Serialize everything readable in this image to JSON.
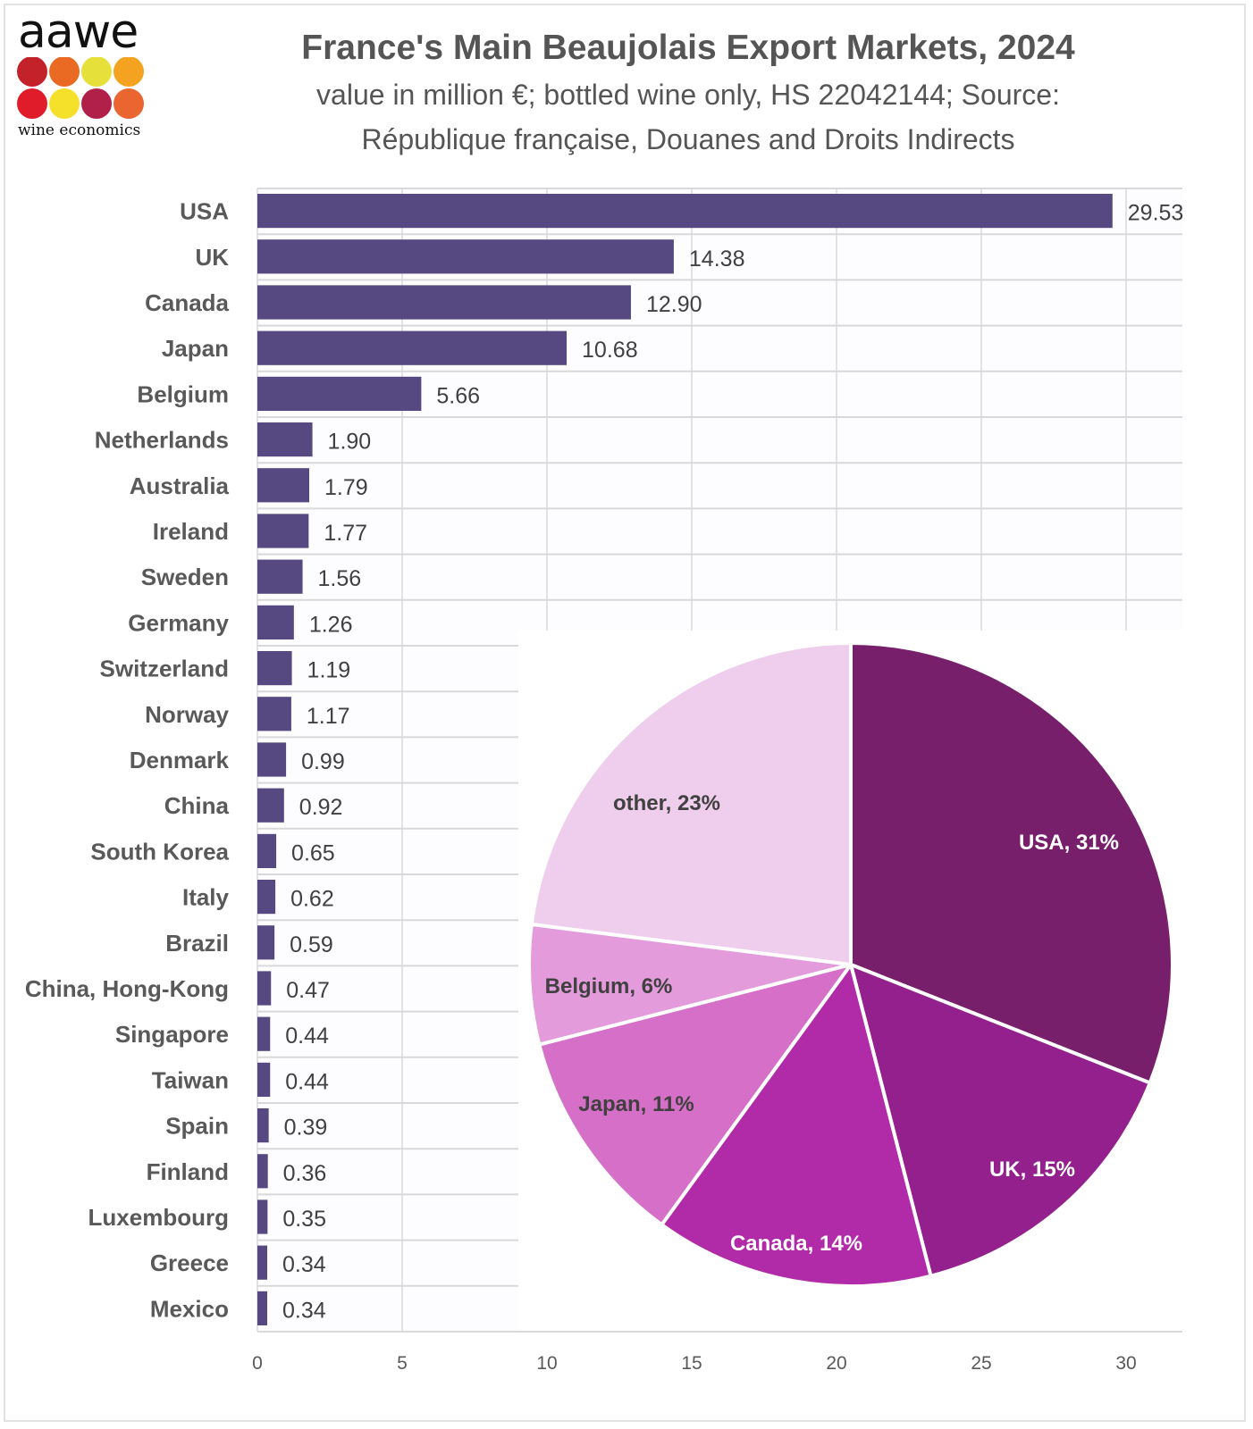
{
  "logo": {
    "wordmark": "aawe",
    "tagline": "wine economics",
    "dot_colors": [
      "#c3222b",
      "#ea6a24",
      "#e6e03a",
      "#f4a321",
      "#e01c2a",
      "#f5e12a",
      "#b02048",
      "#ea6530"
    ]
  },
  "header": {
    "title": "France's Main Beaujolais Export Markets, 2024",
    "subtitle_line1": "value in million €; bottled wine only, HS 22042144; Source:",
    "subtitle_line2": "République française, Douanes and Droits Indirects"
  },
  "colors": {
    "bar": "#564880",
    "grid": "#d9d9d9",
    "plot_bg": "#fdfcfe",
    "text": "#595959"
  },
  "chart_data": [
    {
      "type": "bar",
      "orientation": "horizontal",
      "title": "France's Main Beaujolais Export Markets, 2024",
      "subtitle": "value in million €; bottled wine only, HS 22042144; Source: République française, Douanes and Droits Indirects",
      "xlabel": "",
      "ylabel": "",
      "xlim": [
        0,
        32
      ],
      "xticks": [
        0,
        5,
        10,
        15,
        20,
        25,
        30
      ],
      "grid": true,
      "categories": [
        "USA",
        "UK",
        "Canada",
        "Japan",
        "Belgium",
        "Netherlands",
        "Australia",
        "Ireland",
        "Sweden",
        "Germany",
        "Switzerland",
        "Norway",
        "Denmark",
        "China",
        "South Korea",
        "Italy",
        "Brazil",
        "China, Hong-Kong",
        "Singapore",
        "Taiwan",
        "Spain",
        "Finland",
        "Luxembourg",
        "Greece",
        "Mexico"
      ],
      "values": [
        29.53,
        14.38,
        12.9,
        10.68,
        5.66,
        1.9,
        1.79,
        1.77,
        1.56,
        1.26,
        1.19,
        1.17,
        0.99,
        0.92,
        0.65,
        0.62,
        0.59,
        0.47,
        0.44,
        0.44,
        0.39,
        0.36,
        0.35,
        0.34,
        0.34
      ],
      "value_labels": [
        "29.53",
        "14.38",
        "12.90",
        "10.68",
        "5.66",
        "1.90",
        "1.79",
        "1.77",
        "1.56",
        "1.26",
        "1.19",
        "1.17",
        "0.99",
        "0.92",
        "0.65",
        "0.62",
        "0.59",
        "0.47",
        "0.44",
        "0.44",
        "0.39",
        "0.36",
        "0.35",
        "0.34",
        "0.34"
      ],
      "unit": "million €"
    },
    {
      "type": "pie",
      "title": "",
      "start": "12 o'clock, clockwise",
      "slices": [
        {
          "label": "USA",
          "percent": 31,
          "display": "USA, 31%",
          "color": "#781f6b",
          "label_color": "#ffffff"
        },
        {
          "label": "UK",
          "percent": 15,
          "display": "UK, 15%",
          "color": "#93208c",
          "label_color": "#ffffff"
        },
        {
          "label": "Canada",
          "percent": 14,
          "display": "Canada, 14%",
          "color": "#b12aa8",
          "label_color": "#ffffff"
        },
        {
          "label": "Japan",
          "percent": 11,
          "display": "Japan, 11%",
          "color": "#d66fc7",
          "label_color": "#404040"
        },
        {
          "label": "Belgium",
          "percent": 6,
          "display": "Belgium, 6%",
          "color": "#e49bdc",
          "label_color": "#404040"
        },
        {
          "label": "other",
          "percent": 23,
          "display": "other, 23%",
          "color": "#efcdec",
          "label_color": "#404040"
        }
      ]
    }
  ]
}
